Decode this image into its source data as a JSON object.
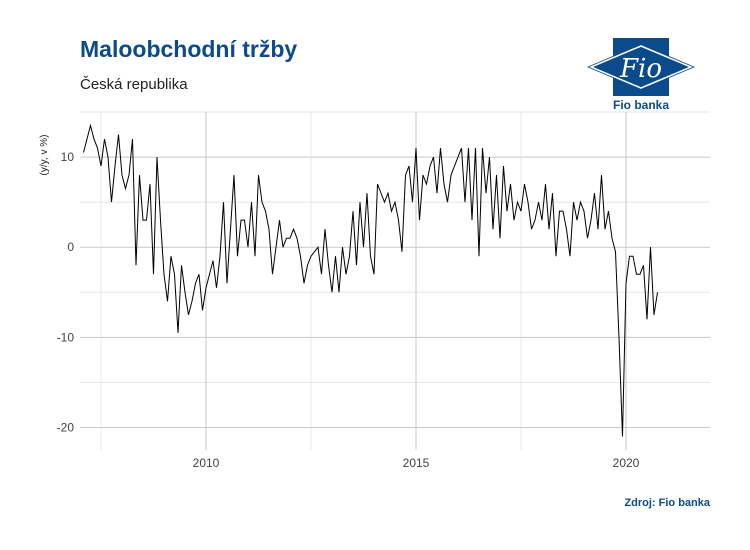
{
  "chart_data": {
    "type": "line",
    "title": "Maloobchodní tržby",
    "subtitle": "Česká republika",
    "ylabel": "(y/y, v %)",
    "xlabel": "",
    "source": "Zdroj: Fio banka",
    "brand": {
      "mark": "Fio",
      "name": "Fio banka",
      "color": "#0b4a8b"
    },
    "xlim": [
      2007.0,
      2022.0
    ],
    "ylim": [
      -22.5,
      15
    ],
    "x_ticks": [
      2010,
      2015,
      2020
    ],
    "x_tick_labels": [
      "2010",
      "2015",
      "2020"
    ],
    "y_ticks": [
      -20,
      -10,
      0,
      10
    ],
    "y_tick_labels": [
      "-20",
      "-10",
      "0",
      "10"
    ],
    "grid": true,
    "line_color": "#000000",
    "series": [
      {
        "x_start": 2007.083,
        "x_step": 0.0833333,
        "values": [
          10.5,
          12,
          13.5,
          12,
          11,
          9,
          12,
          10,
          5,
          9,
          12.5,
          8,
          6.5,
          8,
          12,
          -2,
          8,
          3,
          3,
          7,
          -3,
          10,
          3,
          -3,
          -6,
          -1,
          -3,
          -9.5,
          -2,
          -5,
          -7.5,
          -6,
          -4,
          -3,
          -7,
          -4.5,
          -3,
          -1.5,
          -4.5,
          -1,
          5,
          -4,
          2,
          8,
          -1,
          3,
          3,
          0,
          5,
          -1,
          8,
          5,
          4,
          2,
          -3,
          0,
          3,
          0,
          1,
          1,
          2,
          1,
          -1,
          -4,
          -2,
          -1,
          -0.5,
          0,
          -3,
          2,
          -2,
          -5,
          -1,
          -5,
          0,
          -3,
          -1,
          4,
          -2,
          5,
          0,
          6,
          -1,
          -3,
          7,
          6,
          5,
          6,
          4,
          5,
          3,
          -0.5,
          8,
          9,
          5,
          11,
          3,
          8,
          7,
          9,
          10,
          6,
          11,
          7,
          5,
          8,
          9,
          10,
          11,
          5,
          11,
          3,
          11,
          -1,
          11,
          6,
          10,
          2,
          8,
          1,
          9,
          4,
          7,
          3,
          5,
          4,
          7,
          5,
          2,
          3,
          5,
          3,
          7,
          2,
          6,
          -1,
          4,
          4,
          2,
          -1,
          5,
          3,
          5,
          4,
          1,
          3,
          6,
          2,
          8,
          2,
          4,
          1,
          -0.5,
          -10,
          -21,
          -4,
          -1,
          -1,
          -3,
          -3,
          -2,
          -8,
          0,
          -7.5,
          -5
        ]
      }
    ]
  }
}
